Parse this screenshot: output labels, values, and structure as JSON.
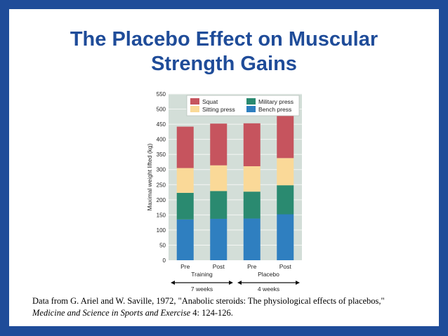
{
  "slide": {
    "title_line1": "The Placebo Effect on Muscular",
    "title_line2": "Strength Gains",
    "citation_part1": "Data from G. Ariel and W. Saville, 1972, \"Anabolic steroids: The physiological effects of placebos,\"",
    "citation_journal": "Medicine and Science in Sports and Exercise",
    "citation_part2": " 4: 124-126."
  },
  "colors": {
    "border": "#1f4c99",
    "plot_bg": "#d3ded8",
    "gridline": "#f4f6f4",
    "bench": "#2f7fc0",
    "military": "#2a8a70",
    "sitting": "#fad998",
    "squat": "#c6545e"
  },
  "chart_data": {
    "type": "bar",
    "stacked": true,
    "categories": [
      "Pre",
      "Post",
      "Pre",
      "Post"
    ],
    "groups": [
      {
        "label": "Training",
        "span_label": "7 weeks"
      },
      {
        "label": "Placebo",
        "span_label": "4 weeks"
      }
    ],
    "series": [
      {
        "name": "Bench press",
        "color": "#2f7fc0",
        "values": [
          135,
          137,
          138,
          152
        ]
      },
      {
        "name": "Military press",
        "color": "#2a8a70",
        "values": [
          88,
          92,
          89,
          96
        ]
      },
      {
        "name": "Sitting press",
        "color": "#fad998",
        "values": [
          82,
          85,
          84,
          90
        ]
      },
      {
        "name": "Squat",
        "color": "#c6545e",
        "values": [
          137,
          138,
          142,
          153
        ]
      }
    ],
    "legend_order": [
      "Squat",
      "Military press",
      "Sitting press",
      "Bench press"
    ],
    "legend_position": "top-right",
    "ylabel": "Maximal weight lifted (kg)",
    "xlabel": "",
    "ylim": [
      0,
      550
    ],
    "yticks": [
      0,
      50,
      100,
      150,
      200,
      250,
      300,
      350,
      400,
      450,
      500,
      550
    ],
    "grid": true
  }
}
